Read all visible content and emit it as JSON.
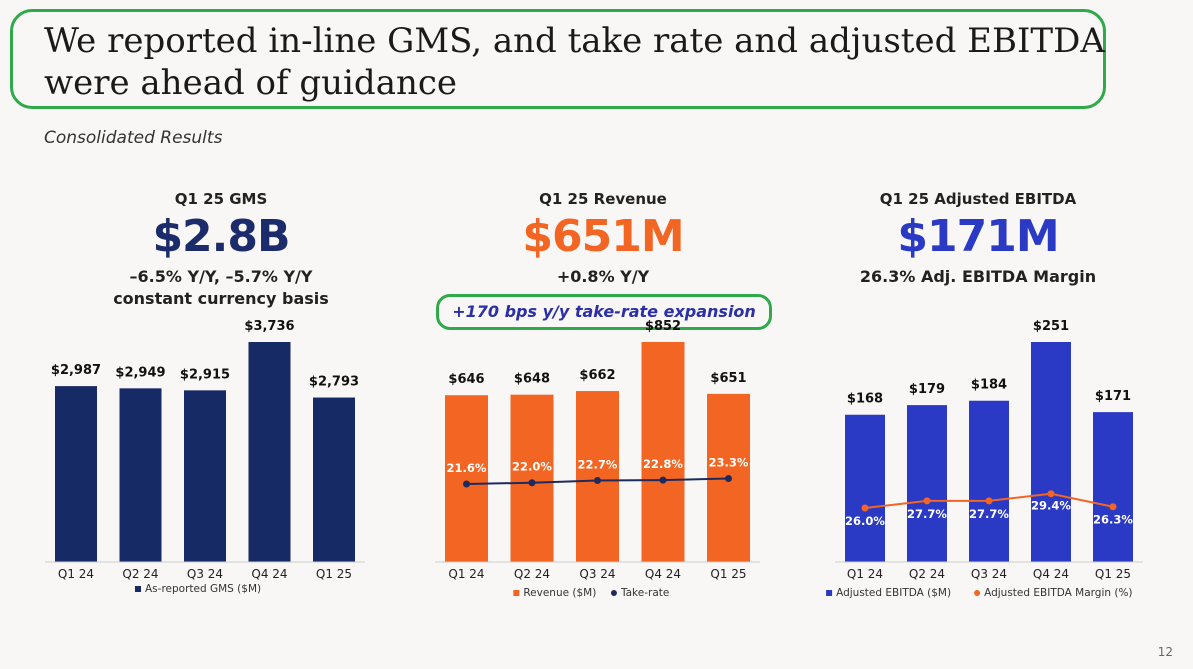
{
  "title": "We reported in-line GMS, and take rate and adjusted EBITDA were ahead of guidance",
  "subtitle": "Consolidated Results",
  "page_number": "12",
  "callout": "+170 bps y/y take-rate expansion",
  "colors": {
    "gms": "#162a66",
    "revenue": "#f26522",
    "ebitda": "#2b3ac4",
    "take_rate": "#1f2a5c",
    "margin": "#f26522",
    "highlight": "#2eaa4a"
  },
  "panels": [
    {
      "label": "Q1 25 GMS",
      "big": "$2.8B",
      "big_color": "#1c2b6b",
      "sub1": "–6.5% Y/Y, –5.7% Y/Y",
      "sub2": "constant currency basis"
    },
    {
      "label": "Q1 25 Revenue",
      "big": "$651M",
      "big_color": "#f26522",
      "sub1": "+0.8% Y/Y",
      "sub2": ""
    },
    {
      "label": "Q1 25 Adjusted EBITDA",
      "big": "$171M",
      "big_color": "#2b3ac4",
      "sub1": "26.3% Adj. EBITDA Margin",
      "sub2": ""
    }
  ],
  "chart_data": [
    {
      "type": "bar",
      "categories": [
        "Q1 24",
        "Q2 24",
        "Q3 24",
        "Q4 24",
        "Q1 25"
      ],
      "series": [
        {
          "name": "As-reported GMS ($M)",
          "values": [
            2987,
            2949,
            2915,
            3736,
            2793
          ],
          "labels": [
            "$2,987",
            "$2,949",
            "$2,915",
            "$3,736",
            "$2,793"
          ]
        }
      ],
      "ylim": [
        0,
        4200
      ]
    },
    {
      "type": "bar",
      "categories": [
        "Q1 24",
        "Q2 24",
        "Q3 24",
        "Q4 24",
        "Q1 25"
      ],
      "series": [
        {
          "name": "Revenue ($M)",
          "values": [
            646,
            648,
            662,
            852,
            651
          ],
          "labels": [
            "$646",
            "$648",
            "$662",
            "$852",
            "$651"
          ]
        },
        {
          "name": "Take-rate",
          "type": "line",
          "values": [
            21.6,
            22.0,
            22.7,
            22.8,
            23.3
          ],
          "labels": [
            "21.6%",
            "22.0%",
            "22.7%",
            "22.8%",
            "23.3%"
          ]
        }
      ],
      "ylim": [
        0,
        1000
      ]
    },
    {
      "type": "bar",
      "categories": [
        "Q1 24",
        "Q2 24",
        "Q3 24",
        "Q4 24",
        "Q1 25"
      ],
      "series": [
        {
          "name": "Adjusted EBITDA ($M)",
          "values": [
            168,
            179,
            184,
            251,
            171
          ],
          "labels": [
            "$168",
            "$179",
            "$184",
            "$251",
            "$171"
          ]
        },
        {
          "name": "Adjusted EBITDA Margin (%)",
          "type": "line",
          "values": [
            26.0,
            27.7,
            27.7,
            29.4,
            26.3
          ],
          "labels": [
            "26.0%",
            "27.7%",
            "27.7%",
            "29.4%",
            "26.3%"
          ]
        }
      ],
      "ylim": [
        0,
        290
      ]
    }
  ]
}
